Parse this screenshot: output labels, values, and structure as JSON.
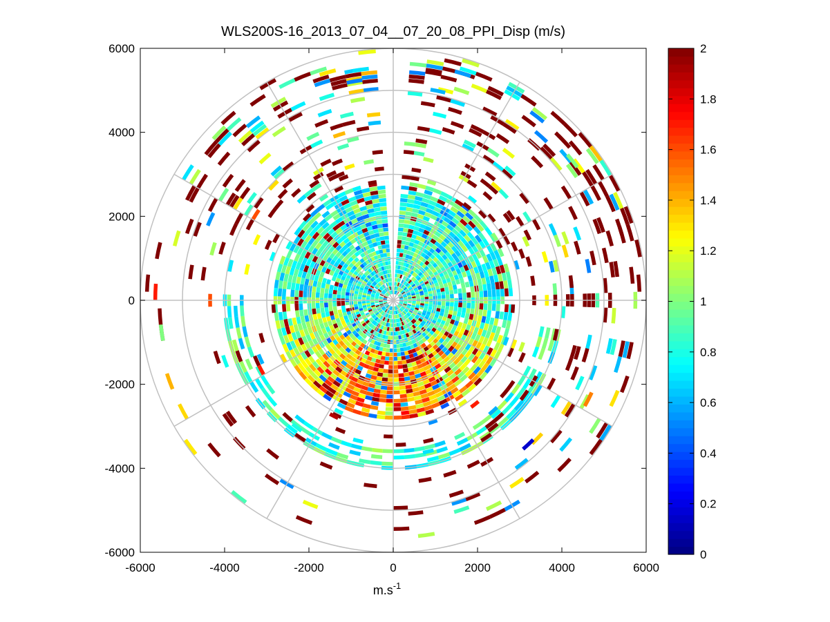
{
  "chart_data": {
    "type": "heatmap",
    "subtype": "polar-ppi",
    "title": "WLS200S-16_2013_07_04__07_20_08_PPI_Disp (m/s)",
    "xlabel_base": "m.s",
    "xlabel_exponent": "-1",
    "ylabel": "",
    "xlim": [
      -6000,
      6000
    ],
    "ylim": [
      -6000,
      6000
    ],
    "x_ticks": [
      -6000,
      -4000,
      -2000,
      0,
      2000,
      4000,
      6000
    ],
    "y_ticks": [
      -6000,
      -4000,
      -2000,
      0,
      2000,
      4000,
      6000
    ],
    "x_tick_labels": [
      "-6000",
      "-4000",
      "-2000",
      "0",
      "2000",
      "4000",
      "6000"
    ],
    "y_tick_labels": [
      "-6000",
      "-4000",
      "-2000",
      "0",
      "2000",
      "4000",
      "6000"
    ],
    "range_rings_m": [
      1000,
      2000,
      3000,
      4000,
      5000,
      6000
    ],
    "spoke_angles_deg": [
      0,
      30,
      60,
      90,
      120,
      150,
      180,
      210,
      240,
      270,
      300,
      330
    ],
    "colorbar": {
      "colormap": "jet",
      "limits": [
        0,
        2
      ],
      "ticks": [
        0,
        0.2,
        0.4,
        0.6,
        0.8,
        1,
        1.2,
        1.4,
        1.6,
        1.8,
        2
      ],
      "tick_labels": [
        "0",
        "0.2",
        "0.4",
        "0.6",
        "0.8",
        "1",
        "1.2",
        "1.4",
        "1.6",
        "1.8",
        "2"
      ]
    },
    "data_summary": {
      "inner_dense_region_radius_m": 2800,
      "sparse_outer_radius_m": 6000,
      "range_gate_m": 100,
      "azimuth_step_deg": 4,
      "missing_sector_deg": [
        -4,
        4
      ]
    },
    "cells": [
      {
        "r": 3950,
        "az": 190,
        "v": 0.85
      },
      {
        "r": 3850,
        "az": 200,
        "v": 0.75
      },
      {
        "r": 3750,
        "az": 215,
        "v": 0.8
      },
      {
        "r": 3650,
        "az": 165,
        "v": 0.7
      },
      {
        "r": 3550,
        "az": 160,
        "v": 0.65
      },
      {
        "r": 3950,
        "az": 230,
        "v": 0.7
      },
      {
        "r": 3400,
        "az": 175,
        "v": 2.0
      },
      {
        "r": 3300,
        "az": 200,
        "v": 2.0
      },
      {
        "r": 3050,
        "az": 205,
        "v": 1.9
      },
      {
        "r": 2950,
        "az": 150,
        "v": 2.0
      },
      {
        "r": 3100,
        "az": 140,
        "v": 1.7
      },
      {
        "r": 5000,
        "az": 25,
        "v": 2.0
      },
      {
        "r": 5300,
        "az": 35,
        "v": 2.0
      },
      {
        "r": 5500,
        "az": 45,
        "v": 2.0
      },
      {
        "r": 4950,
        "az": 40,
        "v": 2.0
      },
      {
        "r": 5200,
        "az": 60,
        "v": 0.6
      },
      {
        "r": 5600,
        "az": 70,
        "v": 2.0
      },
      {
        "r": 4700,
        "az": 62,
        "v": 2.0
      },
      {
        "r": 5350,
        "az": 50,
        "v": 1.0
      },
      {
        "r": 5650,
        "az": 82,
        "v": 2.0
      },
      {
        "r": 5050,
        "az": 10,
        "v": 0.6
      },
      {
        "r": 5450,
        "az": 8,
        "v": 2.0
      },
      {
        "r": 5600,
        "az": 15,
        "v": 0.55
      },
      {
        "r": 4400,
        "az": 18,
        "v": 2.0
      },
      {
        "r": 5500,
        "az": -10,
        "v": 0.7
      },
      {
        "r": 5250,
        "az": -12,
        "v": 0.5
      },
      {
        "r": 5050,
        "az": -20,
        "v": 0.8
      },
      {
        "r": 5600,
        "az": -18,
        "v": 1.3
      },
      {
        "r": 4900,
        "az": -30,
        "v": 2.0
      },
      {
        "r": 4700,
        "az": -22,
        "v": 0.7
      },
      {
        "r": 3600,
        "az": -28,
        "v": 2.0
      },
      {
        "r": 3400,
        "az": -33,
        "v": 2.0
      },
      {
        "r": 3200,
        "az": -25,
        "v": 2.0
      },
      {
        "r": 5350,
        "az": -40,
        "v": 0.6
      },
      {
        "r": 4500,
        "az": -55,
        "v": 2.0
      },
      {
        "r": 5650,
        "az": -80,
        "v": 2.0
      },
      {
        "r": 5600,
        "az": -90,
        "v": 1.7
      },
      {
        "r": 5500,
        "az": -100,
        "v": 1.0
      },
      {
        "r": 4300,
        "az": -92,
        "v": 1.6
      },
      {
        "r": 4900,
        "az": -72,
        "v": 2.0
      },
      {
        "r": 3800,
        "az": -60,
        "v": 1.6
      },
      {
        "r": 4200,
        "az": -75,
        "v": 2.0
      },
      {
        "r": 4600,
        "az": 110,
        "v": 2.0
      },
      {
        "r": 3900,
        "az": 100,
        "v": 2.0
      },
      {
        "r": 3800,
        "az": 118,
        "v": 2.0
      },
      {
        "r": 5150,
        "az": 115,
        "v": 1.5
      },
      {
        "r": 4650,
        "az": 135,
        "v": 0.15
      },
      {
        "r": 5600,
        "az": 170,
        "v": 1.1
      },
      {
        "r": 5050,
        "az": 172,
        "v": 2.0
      },
      {
        "r": 4400,
        "az": 185,
        "v": 2.0
      },
      {
        "r": 4250,
        "az": 230,
        "v": 2.0
      },
      {
        "r": 4950,
        "az": 225,
        "v": 2.0
      },
      {
        "r": 4350,
        "az": 250,
        "v": 2.0
      },
      {
        "r": 3850,
        "az": 248,
        "v": 2.0
      },
      {
        "r": 3500,
        "az": 240,
        "v": 1.7
      },
      {
        "r": 4650,
        "az": 78,
        "v": 0.5
      },
      {
        "r": 4200,
        "az": 82,
        "v": 2.0
      },
      {
        "r": 3300,
        "az": 72,
        "v": 2.0
      },
      {
        "r": 3500,
        "az": 62,
        "v": 2.0
      },
      {
        "r": 3900,
        "az": 50,
        "v": 2.0
      }
    ]
  }
}
